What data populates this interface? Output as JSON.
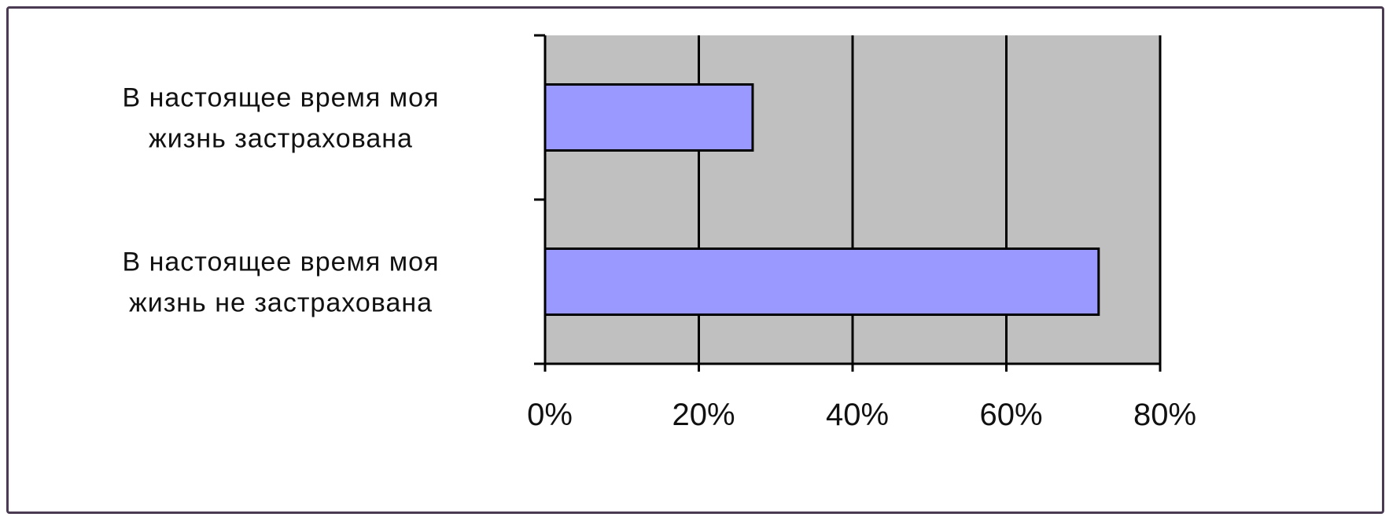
{
  "chart_data": {
    "type": "bar",
    "orientation": "horizontal",
    "categories": [
      [
        "В настоящее время моя",
        "жизнь  застрахована"
      ],
      [
        "В настоящее время моя",
        "жизнь не застрахована"
      ]
    ],
    "values": [
      0.27,
      0.72
    ],
    "xlim": [
      0,
      0.8
    ],
    "ticks": [
      0,
      0.2,
      0.4,
      0.6,
      0.8
    ],
    "tick_labels": [
      "0%",
      "20%",
      "40%",
      "60%",
      "80%"
    ],
    "grid": true,
    "legend": "none",
    "colors": {
      "bar_fill": "#9999ff",
      "bar_stroke": "#000000",
      "plot_bg": "#c0c0c0",
      "frame": "#4a3a52"
    }
  }
}
